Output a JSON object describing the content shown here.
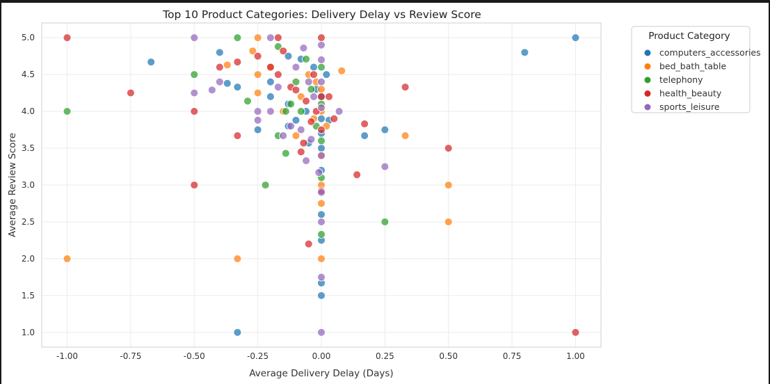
{
  "chart_data": {
    "type": "scatter",
    "title": "Top 10 Product Categories: Delivery Delay vs Review Score",
    "xlabel": "Average Delivery Delay (Days)",
    "ylabel": "Average Review Score",
    "xlim": [
      -1.1,
      1.1
    ],
    "ylim": [
      0.8,
      5.2
    ],
    "xticks": [
      "-1.00",
      "-0.75",
      "-0.50",
      "-0.25",
      "0.00",
      "0.25",
      "0.50",
      "0.75",
      "1.00"
    ],
    "yticks": [
      "1.0",
      "1.5",
      "2.0",
      "2.5",
      "3.0",
      "3.5",
      "4.0",
      "4.5",
      "5.0"
    ],
    "grid": true,
    "legend": {
      "title": "Product Category",
      "placement": "upper-right outside"
    },
    "series": [
      {
        "name": "computers_accessories",
        "color": "#1f77b4",
        "points": [
          [
            -0.67,
            4.67
          ],
          [
            -0.4,
            4.8
          ],
          [
            -0.37,
            4.38
          ],
          [
            -0.33,
            4.33
          ],
          [
            -0.25,
            3.75
          ],
          [
            -0.2,
            4.4
          ],
          [
            -0.2,
            4.2
          ],
          [
            -0.13,
            4.75
          ],
          [
            -0.13,
            4.1
          ],
          [
            -0.13,
            3.8
          ],
          [
            -0.1,
            3.88
          ],
          [
            -0.08,
            4.71
          ],
          [
            -0.06,
            4.0
          ],
          [
            -0.05,
            3.57
          ],
          [
            -0.03,
            4.6
          ],
          [
            -0.02,
            4.3
          ],
          [
            0.0,
            4.2
          ],
          [
            0.0,
            3.9
          ],
          [
            0.0,
            3.7
          ],
          [
            0.0,
            3.5
          ],
          [
            0.0,
            3.2
          ],
          [
            0.0,
            2.6
          ],
          [
            0.0,
            2.25
          ],
          [
            0.0,
            1.67
          ],
          [
            0.0,
            1.5
          ],
          [
            0.02,
            4.5
          ],
          [
            0.03,
            3.88
          ],
          [
            0.17,
            3.67
          ],
          [
            0.25,
            3.75
          ],
          [
            0.8,
            4.8
          ],
          [
            1.0,
            5.0
          ],
          [
            -0.33,
            1.0
          ]
        ]
      },
      {
        "name": "bed_bath_table",
        "color": "#ff7f0e",
        "points": [
          [
            -1.0,
            2.0
          ],
          [
            -0.37,
            4.63
          ],
          [
            -0.27,
            4.82
          ],
          [
            -0.25,
            5.0
          ],
          [
            -0.25,
            4.5
          ],
          [
            -0.25,
            4.25
          ],
          [
            -0.33,
            2.0
          ],
          [
            -0.2,
            4.6
          ],
          [
            -0.15,
            4.0
          ],
          [
            -0.1,
            3.67
          ],
          [
            -0.08,
            4.2
          ],
          [
            -0.05,
            4.5
          ],
          [
            -0.03,
            3.9
          ],
          [
            -0.02,
            4.4
          ],
          [
            0.0,
            4.3
          ],
          [
            0.0,
            4.0
          ],
          [
            0.0,
            3.4
          ],
          [
            0.0,
            3.0
          ],
          [
            0.0,
            2.75
          ],
          [
            0.0,
            2.0
          ],
          [
            0.02,
            3.8
          ],
          [
            0.08,
            4.55
          ],
          [
            0.33,
            3.67
          ],
          [
            0.5,
            3.0
          ],
          [
            0.5,
            2.5
          ]
        ]
      },
      {
        "name": "telephony",
        "color": "#2ca02c",
        "points": [
          [
            -1.0,
            4.0
          ],
          [
            -0.5,
            4.5
          ],
          [
            -0.33,
            5.0
          ],
          [
            -0.29,
            4.14
          ],
          [
            -0.22,
            3.0
          ],
          [
            -0.17,
            4.88
          ],
          [
            -0.17,
            3.67
          ],
          [
            -0.14,
            4.0
          ],
          [
            -0.14,
            3.43
          ],
          [
            -0.12,
            4.1
          ],
          [
            -0.1,
            4.4
          ],
          [
            -0.08,
            4.0
          ],
          [
            -0.06,
            4.71
          ],
          [
            -0.04,
            4.3
          ],
          [
            -0.02,
            3.8
          ],
          [
            0.0,
            4.6
          ],
          [
            0.0,
            4.1
          ],
          [
            0.0,
            3.6
          ],
          [
            0.0,
            3.1
          ],
          [
            0.0,
            2.33
          ],
          [
            0.25,
            2.5
          ]
        ]
      },
      {
        "name": "health_beauty",
        "color": "#d62728",
        "points": [
          [
            -1.0,
            5.0
          ],
          [
            -0.75,
            4.25
          ],
          [
            -0.5,
            4.0
          ],
          [
            -0.5,
            3.0
          ],
          [
            -0.4,
            4.6
          ],
          [
            -0.33,
            4.67
          ],
          [
            -0.33,
            3.67
          ],
          [
            -0.25,
            4.75
          ],
          [
            -0.2,
            4.6
          ],
          [
            -0.17,
            5.0
          ],
          [
            -0.17,
            4.5
          ],
          [
            -0.15,
            4.82
          ],
          [
            -0.12,
            4.33
          ],
          [
            -0.1,
            4.29
          ],
          [
            -0.08,
            3.45
          ],
          [
            -0.07,
            3.57
          ],
          [
            -0.06,
            4.14
          ],
          [
            -0.05,
            2.2
          ],
          [
            -0.04,
            3.86
          ],
          [
            -0.03,
            4.5
          ],
          [
            -0.02,
            4.0
          ],
          [
            0.0,
            5.0
          ],
          [
            0.0,
            4.2
          ],
          [
            0.0,
            3.75
          ],
          [
            0.0,
            2.92
          ],
          [
            0.03,
            4.2
          ],
          [
            0.05,
            3.9
          ],
          [
            0.14,
            3.14
          ],
          [
            0.17,
            3.83
          ],
          [
            0.33,
            4.33
          ],
          [
            0.5,
            3.5
          ],
          [
            1.0,
            1.0
          ]
        ]
      },
      {
        "name": "sports_leisure",
        "color": "#9467bd",
        "points": [
          [
            -0.5,
            5.0
          ],
          [
            -0.5,
            4.25
          ],
          [
            -0.43,
            4.29
          ],
          [
            -0.4,
            4.4
          ],
          [
            -0.25,
            4.0
          ],
          [
            -0.25,
            3.88
          ],
          [
            -0.2,
            4.0
          ],
          [
            -0.2,
            5.0
          ],
          [
            -0.17,
            4.33
          ],
          [
            -0.15,
            3.67
          ],
          [
            -0.12,
            3.8
          ],
          [
            -0.1,
            4.6
          ],
          [
            -0.08,
            3.75
          ],
          [
            -0.07,
            4.86
          ],
          [
            -0.06,
            3.33
          ],
          [
            -0.05,
            4.4
          ],
          [
            -0.04,
            3.62
          ],
          [
            -0.03,
            4.2
          ],
          [
            -0.01,
            3.17
          ],
          [
            0.0,
            4.9
          ],
          [
            0.0,
            4.7
          ],
          [
            0.0,
            4.4
          ],
          [
            0.0,
            4.05
          ],
          [
            0.0,
            3.4
          ],
          [
            0.0,
            2.9
          ],
          [
            0.0,
            2.5
          ],
          [
            0.0,
            1.75
          ],
          [
            0.0,
            1.0
          ],
          [
            0.07,
            4.0
          ],
          [
            0.25,
            3.25
          ]
        ]
      }
    ]
  }
}
